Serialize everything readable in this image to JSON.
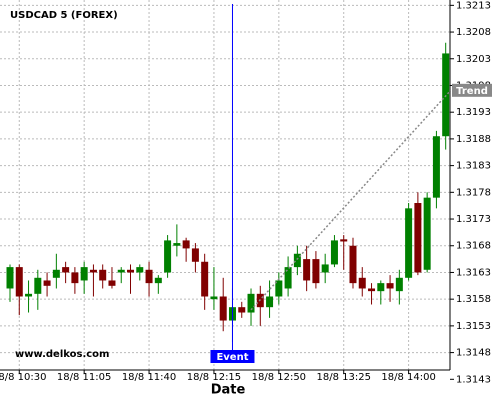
{
  "chart_data": {
    "type": "candlestick",
    "title": "USDCAD 5 (FOREX)",
    "x_label": "Date",
    "watermark": "www.delkos.com",
    "categories": [
      null,
      "18/8 10:30",
      null,
      null,
      null,
      null,
      null,
      null,
      "18/8 11:05",
      null,
      null,
      null,
      null,
      null,
      null,
      "18/8 11:40",
      null,
      null,
      null,
      null,
      null,
      null,
      "18/8 12:15",
      null,
      null,
      null,
      null,
      null,
      null,
      "18/8 12:50",
      null,
      null,
      null,
      null,
      null,
      null,
      "18/8 13:25",
      null,
      null,
      null,
      null,
      null,
      null,
      "18/8 14:00",
      null,
      null,
      null,
      null
    ],
    "open": [
      1.316,
      1.3164,
      1.31585,
      1.3159,
      1.31615,
      1.3162,
      1.3164,
      1.3163,
      1.31615,
      1.31635,
      1.31635,
      1.31615,
      1.3163,
      1.31635,
      1.3163,
      1.31635,
      1.3161,
      1.3163,
      1.3168,
      1.3169,
      1.31675,
      1.3165,
      1.3158,
      1.31585,
      1.3154,
      1.31565,
      1.31555,
      1.3159,
      1.31565,
      1.31585,
      1.316,
      1.3164,
      1.31655,
      1.31655,
      1.3163,
      1.31645,
      1.31692,
      1.3168,
      1.3162,
      1.316,
      1.31595,
      1.3161,
      1.31595,
      1.3162,
      1.3176,
      1.31635,
      1.3177,
      1.31885
    ],
    "high": [
      1.31645,
      1.31645,
      1.31615,
      1.31635,
      1.3163,
      1.31665,
      1.3165,
      1.3164,
      1.3165,
      1.31645,
      1.31645,
      1.3164,
      1.3164,
      1.31645,
      1.31645,
      1.3165,
      1.31625,
      1.317,
      1.3172,
      1.31695,
      1.31685,
      1.31665,
      1.3164,
      1.3162,
      1.316,
      1.31575,
      1.316,
      1.31605,
      1.31615,
      1.3163,
      1.3166,
      1.3168,
      1.3168,
      1.3167,
      1.31665,
      1.317,
      1.317,
      1.31695,
      1.3164,
      1.3161,
      1.31615,
      1.31625,
      1.31635,
      1.3176,
      1.3178,
      1.3178,
      1.31895,
      1.3206
    ],
    "low": [
      1.31575,
      1.3155,
      1.31555,
      1.3156,
      1.31585,
      1.316,
      1.3161,
      1.3159,
      1.3159,
      1.31585,
      1.316,
      1.316,
      1.3161,
      1.3159,
      1.31615,
      1.31585,
      1.3159,
      1.3162,
      1.3166,
      1.3165,
      1.3163,
      1.3156,
      1.3156,
      1.3152,
      1.315,
      1.31545,
      1.3153,
      1.3153,
      1.31545,
      1.3157,
      1.31585,
      1.31625,
      1.31595,
      1.316,
      1.3161,
      1.3164,
      1.31635,
      1.316,
      1.31585,
      1.3157,
      1.3157,
      1.31575,
      1.3157,
      1.31615,
      1.31625,
      1.3163,
      1.3175,
      1.3186
    ],
    "close": [
      1.3164,
      1.31585,
      1.3159,
      1.3162,
      1.31605,
      1.31635,
      1.3163,
      1.3161,
      1.3164,
      1.3163,
      1.31615,
      1.31605,
      1.31635,
      1.3163,
      1.3164,
      1.3161,
      1.3162,
      1.3169,
      1.31685,
      1.31675,
      1.3165,
      1.31585,
      1.31585,
      1.3154,
      1.31565,
      1.31555,
      1.3159,
      1.31565,
      1.31585,
      1.31615,
      1.3164,
      1.31665,
      1.31615,
      1.3161,
      1.31645,
      1.3169,
      1.31688,
      1.3161,
      1.316,
      1.31595,
      1.3161,
      1.316,
      1.3162,
      1.3175,
      1.3163,
      1.3177,
      1.31885,
      1.3204
    ],
    "up_color": "#008000",
    "down_color": "#800000",
    "ylim": [
      1.3143,
      1.3214
    ],
    "yticks": [
      1.3143,
      1.3148,
      1.3153,
      1.3158,
      1.3163,
      1.3168,
      1.3173,
      1.3178,
      1.3183,
      1.3188,
      1.3193,
      1.3198,
      1.3203,
      1.3208,
      1.3213
    ],
    "grid": true,
    "event": {
      "label": "Event",
      "index": 24,
      "color": "#0000ff"
    },
    "trend": {
      "label": "Trend",
      "from": {
        "index": 26,
        "value": 1.3156
      },
      "to": {
        "index": 47.5,
        "value": 1.3197
      },
      "color": "#888888"
    }
  }
}
